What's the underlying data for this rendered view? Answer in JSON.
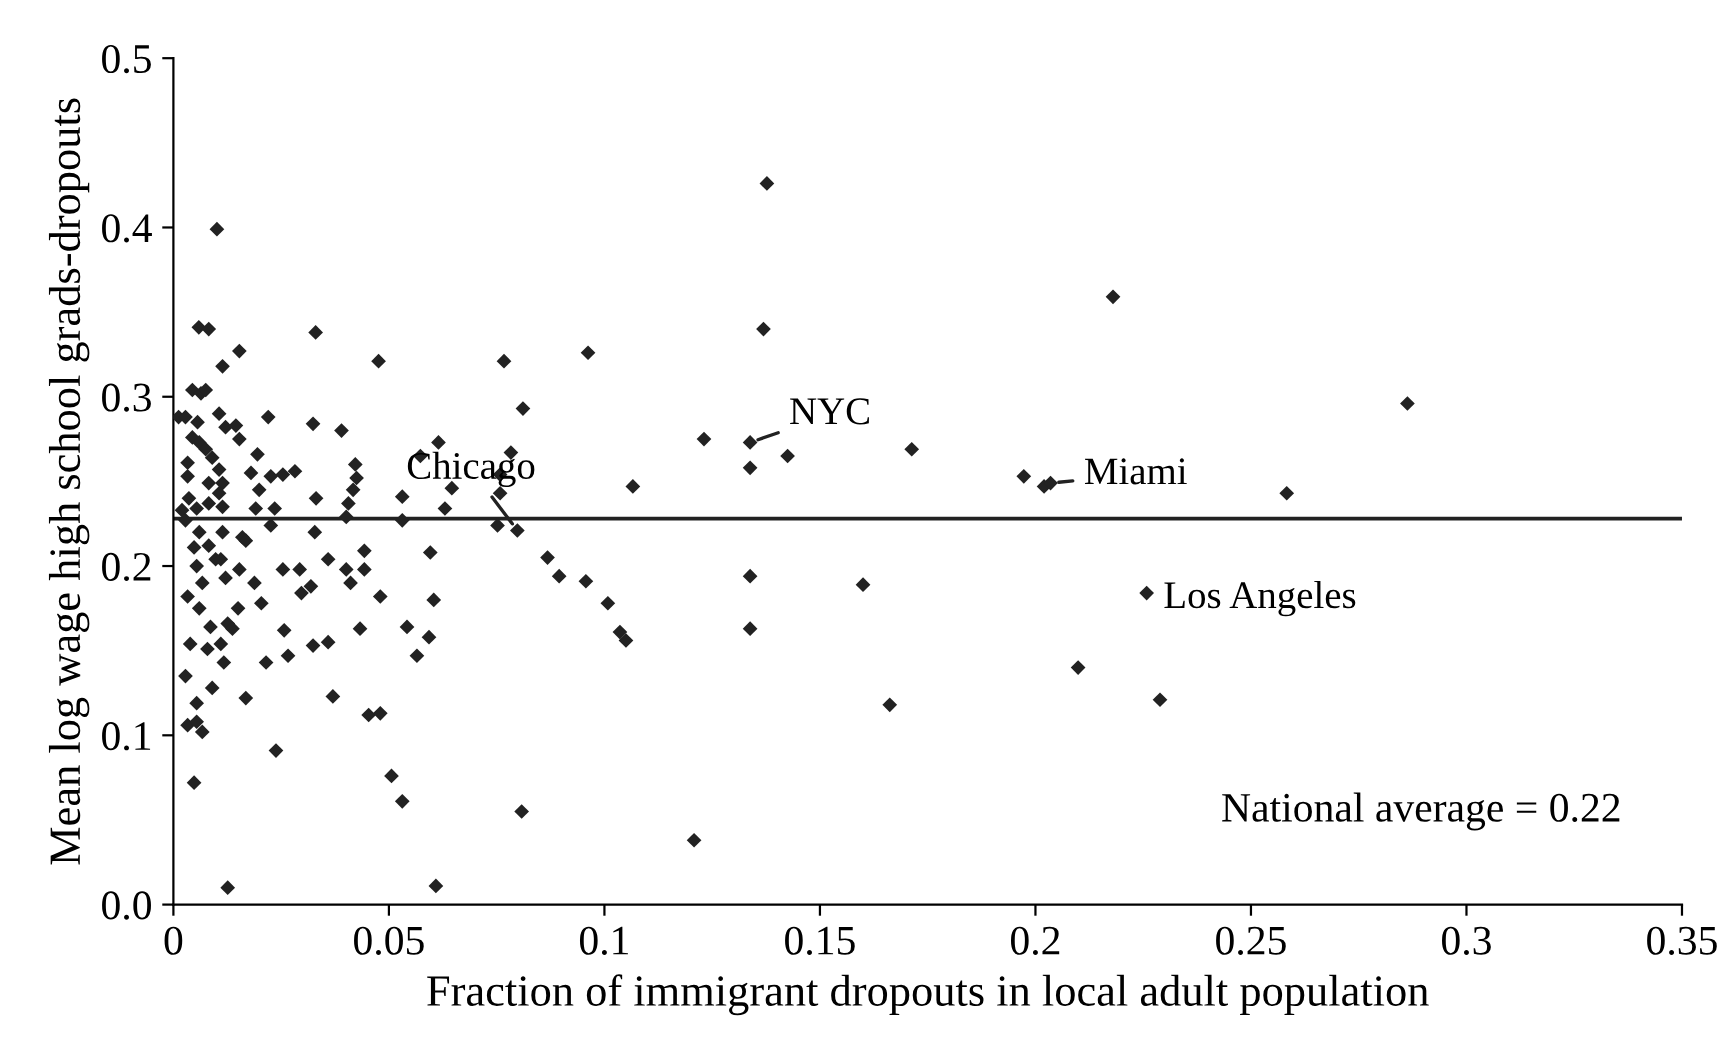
{
  "chart_data": {
    "type": "scatter",
    "xlabel": "Fraction of immigrant dropouts in local adult population",
    "ylabel": "Mean log wage high school grads-dropouts",
    "xlim": [
      0,
      0.35
    ],
    "ylim": [
      0,
      0.5
    ],
    "xticks": [
      0,
      0.05,
      0.1,
      0.15,
      0.2,
      0.25,
      0.3,
      0.35
    ],
    "yticks": [
      {
        "value": 0,
        "label": "0.0"
      },
      0.1,
      0.2,
      0.3,
      0.4,
      0.5
    ],
    "marker": "diamond",
    "grid": false,
    "legend": false,
    "series": [
      {
        "color": "#222222",
        "x": [
          0.0101,
          0.0059,
          0.0082,
          0.033,
          0.0153,
          0.0114,
          0.0476,
          0.0044,
          0.0064,
          0.0075,
          0.0012,
          0.0028,
          0.0056,
          0.0106,
          0.0121,
          0.0145,
          0.0153,
          0.022,
          0.0324,
          0.039,
          0.0044,
          0.006,
          0.0075,
          0.009,
          0.0033,
          0.0106,
          0.0195,
          0.018,
          0.0226,
          0.0254,
          0.0282,
          0.0033,
          0.0082,
          0.0114,
          0.0199,
          0.0422,
          0.0425,
          0.0417,
          0.0573,
          0.0615,
          0.0646,
          0.0531,
          0.0331,
          0.0036,
          0.0082,
          0.0106,
          0.0114,
          0.0054,
          0.002,
          0.0191,
          0.0235,
          0.0406,
          0.063,
          0.0028,
          0.0226,
          0.0401,
          0.0531,
          0.006,
          0.0114,
          0.0328,
          0.0048,
          0.016,
          0.0168,
          0.0082,
          0.0054,
          0.0098,
          0.011,
          0.0359,
          0.0443,
          0.0596,
          0.0153,
          0.0254,
          0.0293,
          0.0401,
          0.0443,
          0.0067,
          0.0121,
          0.0188,
          0.0319,
          0.0297,
          0.0411,
          0.0033,
          0.006,
          0.0204,
          0.048,
          0.0604,
          0.015,
          0.0086,
          0.0126,
          0.0137,
          0.0039,
          0.0079,
          0.011,
          0.0257,
          0.0433,
          0.0542,
          0.0266,
          0.0324,
          0.0359,
          0.0215,
          0.0117,
          0.0593,
          0.0565,
          0.0028,
          0.009,
          0.0054,
          0.0168,
          0.037,
          0.0033,
          0.0054,
          0.0067,
          0.0453,
          0.048,
          0.0238,
          0.0048,
          0.0506,
          0.0531,
          0.0126,
          0.0609,
          0.0767,
          0.0962,
          0.0811,
          0.0783,
          0.0758,
          0.0758,
          0.0752,
          0.0798,
          0.0868,
          0.0895,
          0.0957,
          0.1008,
          0.1036,
          0.105,
          0.1066,
          0.1231,
          0.1338,
          0.1338,
          0.1425,
          0.1338,
          0.1338,
          0.1369,
          0.0808,
          0.1208,
          0.1377,
          0.218,
          0.2863,
          0.1713,
          0.1973,
          0.202,
          0.2035,
          0.2583,
          0.16,
          0.2258,
          0.2099,
          0.1662,
          0.2289
        ],
        "values": [
          0.399,
          0.341,
          0.34,
          0.338,
          0.327,
          0.318,
          0.321,
          0.304,
          0.302,
          0.304,
          0.288,
          0.288,
          0.285,
          0.29,
          0.282,
          0.283,
          0.275,
          0.288,
          0.284,
          0.28,
          0.276,
          0.273,
          0.269,
          0.264,
          0.261,
          0.257,
          0.266,
          0.255,
          0.253,
          0.254,
          0.256,
          0.253,
          0.249,
          0.249,
          0.245,
          0.26,
          0.252,
          0.245,
          0.265,
          0.273,
          0.246,
          0.241,
          0.24,
          0.24,
          0.237,
          0.243,
          0.235,
          0.234,
          0.233,
          0.234,
          0.234,
          0.237,
          0.234,
          0.227,
          0.224,
          0.229,
          0.227,
          0.22,
          0.22,
          0.22,
          0.211,
          0.217,
          0.215,
          0.212,
          0.2,
          0.204,
          0.204,
          0.204,
          0.209,
          0.208,
          0.198,
          0.198,
          0.198,
          0.198,
          0.198,
          0.19,
          0.193,
          0.19,
          0.188,
          0.184,
          0.19,
          0.182,
          0.175,
          0.178,
          0.182,
          0.18,
          0.175,
          0.164,
          0.166,
          0.163,
          0.154,
          0.151,
          0.154,
          0.162,
          0.163,
          0.164,
          0.147,
          0.153,
          0.155,
          0.143,
          0.143,
          0.158,
          0.147,
          0.135,
          0.128,
          0.119,
          0.122,
          0.123,
          0.106,
          0.108,
          0.102,
          0.112,
          0.113,
          0.091,
          0.072,
          0.076,
          0.061,
          0.01,
          0.011,
          0.321,
          0.326,
          0.293,
          0.267,
          0.254,
          0.243,
          0.224,
          0.221,
          0.205,
          0.194,
          0.191,
          0.178,
          0.161,
          0.156,
          0.247,
          0.275,
          0.273,
          0.258,
          0.265,
          0.194,
          0.163,
          0.34,
          0.055,
          0.038,
          0.426,
          0.359,
          0.296,
          0.269,
          0.253,
          0.247,
          0.249,
          0.243,
          0.189,
          0.184,
          0.14,
          0.118,
          0.121
        ]
      }
    ],
    "ref_lines": [
      {
        "axis": "y",
        "value": 0.228,
        "color": "#222222",
        "line_style": "solid"
      }
    ],
    "annotations": [
      {
        "text": "Chicago",
        "x": 0.0798,
        "y": 0.221
      },
      {
        "text": "NYC",
        "x": 0.1338,
        "y": 0.273
      },
      {
        "text": "Miami",
        "x": 0.2035,
        "y": 0.249
      },
      {
        "text": "Los Angeles",
        "x": 0.2258,
        "y": 0.184
      },
      "National average = 0.22"
    ]
  }
}
